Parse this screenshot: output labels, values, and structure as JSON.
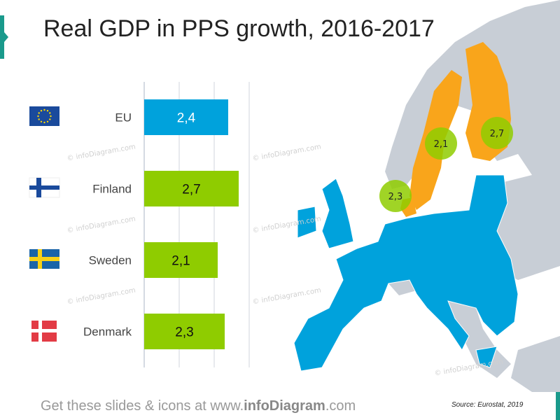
{
  "title": "Real GDP in PPS growth, 2016-2017",
  "footer": {
    "prefix": "Get these slides & icons at www.",
    "brand": "infoDiagram",
    "suffix": ".com"
  },
  "source": "Source: Eurostat, 2019",
  "watermark": "© infoDiagram.com",
  "colors": {
    "eu_bar": "#00a2dc",
    "country_bar": "#8fcc00",
    "highlight_map": "#f9a51b",
    "eu_map": "#00a2dc",
    "other_map": "#c8ced6",
    "accent": "#1a9a8c"
  },
  "chart_data": {
    "type": "bar",
    "orientation": "horizontal",
    "categories": [
      "EU",
      "Finland",
      "Sweden",
      "Denmark"
    ],
    "values": [
      2.4,
      2.7,
      2.1,
      2.3
    ],
    "data_labels": [
      "2,4",
      "2,7",
      "2,1",
      "2,3"
    ],
    "flags": [
      "eu-flag-icon",
      "finland-flag-icon",
      "sweden-flag-icon",
      "denmark-flag-icon"
    ],
    "xlim": [
      0,
      3
    ],
    "grid": true,
    "bar_colors": [
      "#00a2dc",
      "#8fcc00",
      "#8fcc00",
      "#8fcc00"
    ]
  },
  "map_bubbles": [
    {
      "country": "Sweden",
      "label": "2,1"
    },
    {
      "country": "Finland",
      "label": "2,7"
    },
    {
      "country": "Denmark",
      "label": "2,3"
    }
  ]
}
